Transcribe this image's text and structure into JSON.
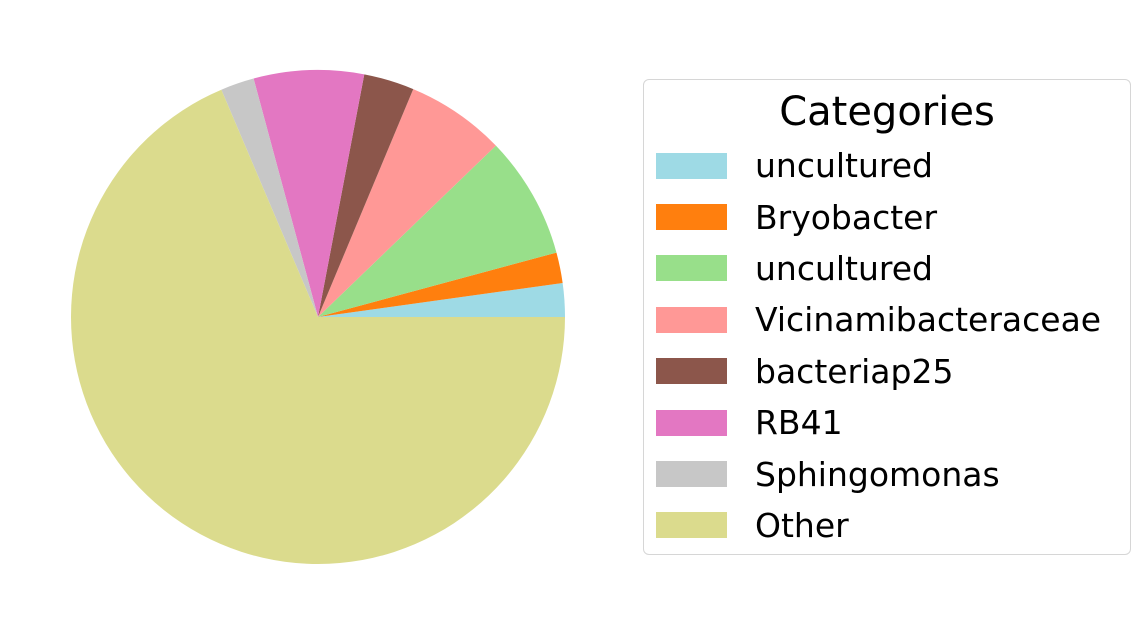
{
  "chart_data": {
    "type": "pie",
    "legend_title": "Categories",
    "legend_position": "right",
    "start_angle": 0,
    "direction": "counterclockwise",
    "slices": [
      {
        "label": "uncultured",
        "value": 2.2,
        "color": "#9edae5"
      },
      {
        "label": "Bryobacter",
        "value": 2.0,
        "color": "#ff7f0e"
      },
      {
        "label": "uncultured",
        "value": 8.0,
        "color": "#98df8a"
      },
      {
        "label": "Vicinamibacteraceae",
        "value": 6.5,
        "color": "#ff9896"
      },
      {
        "label": "bacteriap25",
        "value": 3.3,
        "color": "#8c564b"
      },
      {
        "label": "RB41",
        "value": 7.2,
        "color": "#e377c2"
      },
      {
        "label": "Sphingomonas",
        "value": 2.2,
        "color": "#c7c7c7"
      },
      {
        "label": "Other",
        "value": 68.6,
        "color": "#dbdb8d"
      }
    ]
  }
}
